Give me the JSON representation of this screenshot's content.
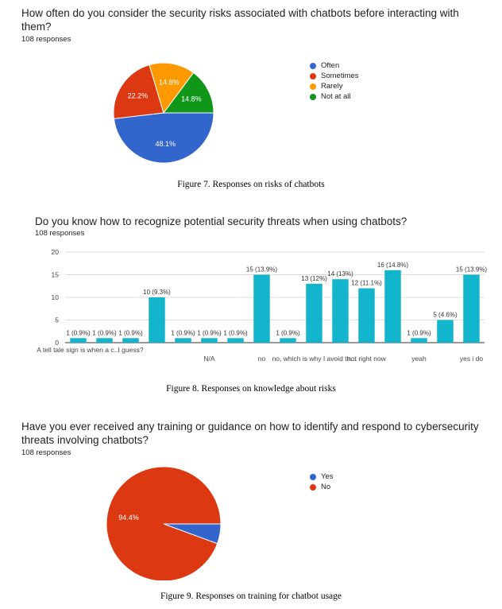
{
  "figures": [
    {
      "question": "How often do you consider the security risks associated with chatbots before interacting with them?",
      "responses": "108 responses",
      "caption": "Figure 7. Responses on risks of chatbots",
      "legend": [
        {
          "label": "Often",
          "color": "#3366cc"
        },
        {
          "label": "Sometimes",
          "color": "#dc3912"
        },
        {
          "label": "Rarely",
          "color": "#ff9900"
        },
        {
          "label": "Not at all",
          "color": "#109618"
        }
      ]
    },
    {
      "question": "Do you know how to recognize potential security threats when using chatbots?",
      "responses": "108 responses",
      "caption": "Figure 8. Responses on knowledge about risks"
    },
    {
      "question": "Have you ever received any training or guidance on how to identify and respond to cybersecurity threats involving chatbots?",
      "responses": "108 responses",
      "caption": "Figure 9. Responses on training for chatbot usage",
      "legend": [
        {
          "label": "Yes",
          "color": "#3366cc"
        },
        {
          "label": "No",
          "color": "#dc3912"
        }
      ]
    }
  ],
  "chart_data": [
    {
      "type": "pie",
      "labels": [
        "Often",
        "Sometimes",
        "Rarely",
        "Not at all"
      ],
      "values": [
        48.1,
        22.2,
        14.8,
        14.8
      ],
      "data_labels": [
        "48.1%",
        "22.2%",
        "14.8%",
        "14.8%"
      ],
      "colors": [
        "#3366cc",
        "#dc3912",
        "#ff9900",
        "#109618"
      ],
      "legend_position": "right"
    },
    {
      "type": "bar",
      "categories": [
        "A tell tale sign is when a c...",
        "",
        "I guess?",
        "",
        "",
        "N/A",
        "",
        "no",
        "",
        "no, which is why I avoid th...",
        "",
        "not right now",
        "",
        "yeah",
        "",
        "yes i do"
      ],
      "values": [
        1,
        1,
        1,
        10,
        1,
        1,
        1,
        15,
        1,
        13,
        14,
        12,
        16,
        1,
        5,
        15
      ],
      "data_labels": [
        "1 (0.9%)",
        "1 (0.9%)",
        "1 (0.9%)",
        "10 (9.3%)",
        "1 (0.9%)",
        "1 (0.9%)",
        "1 (0.9%)",
        "15 (13.9%)",
        "1 (0.9%)",
        "13 (12%)",
        "14 (13%)",
        "12 (11.1%)",
        "16 (14.8%)",
        "1 (0.9%)",
        "5 (4.6%)",
        "15 (13.9%)"
      ],
      "ylim": [
        0,
        20
      ],
      "yticks": [
        0,
        5,
        10,
        15,
        20
      ],
      "color": "#12b5cb",
      "grid": true
    },
    {
      "type": "pie",
      "labels": [
        "Yes",
        "No"
      ],
      "values": [
        5.6,
        94.4
      ],
      "data_labels": [
        "",
        "94.4%"
      ],
      "colors": [
        "#3366cc",
        "#dc3912"
      ],
      "legend_position": "right"
    }
  ]
}
